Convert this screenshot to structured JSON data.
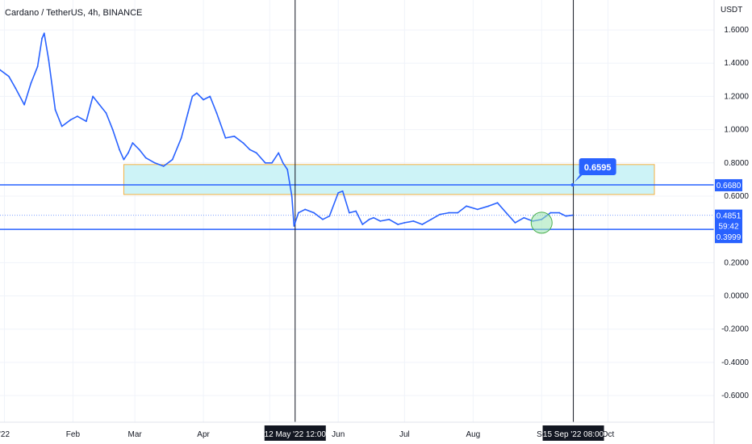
{
  "header": {
    "symbol_line": "Cardano / TetherUS, 4h, BINANCE"
  },
  "chart_data": {
    "type": "line",
    "currency": "USDT",
    "y_ticks": [
      "1.6000",
      "1.4000",
      "1.2000",
      "1.0000",
      "0.8000",
      "0.6000",
      "0.2000",
      "0.0000",
      "-0.2000",
      "-0.4000",
      "-0.6000"
    ],
    "y_tick_values": [
      1.6,
      1.4,
      1.2,
      1.0,
      0.8,
      0.6,
      0.2,
      0.0,
      -0.2,
      -0.4,
      -0.6
    ],
    "ylim": [
      -0.76,
      1.78
    ],
    "x_ticks": [
      "'22",
      "Feb",
      "Mar",
      "Apr",
      "M",
      "Jun",
      "Jul",
      "Aug",
      "Se",
      "Oct"
    ],
    "x_tick_dates": [
      "2022-01-01",
      "2022-02-01",
      "2022-03-01",
      "2022-04-01",
      "2022-05-01",
      "2022-06-01",
      "2022-07-01",
      "2022-08-01",
      "2022-09-01",
      "2022-10-01"
    ],
    "xlim": [
      "2021-12-30",
      "2022-11-18"
    ],
    "series": [
      {
        "x": [
          "2021-12-30",
          "2022-01-03",
          "2022-01-06",
          "2022-01-10",
          "2022-01-13",
          "2022-01-16",
          "2022-01-18",
          "2022-01-19",
          "2022-01-21",
          "2022-01-24",
          "2022-01-27",
          "2022-01-31",
          "2022-02-03",
          "2022-02-07",
          "2022-02-10",
          "2022-02-13",
          "2022-02-16",
          "2022-02-19",
          "2022-02-22",
          "2022-02-24",
          "2022-02-26",
          "2022-02-28",
          "2022-03-03",
          "2022-03-06",
          "2022-03-10",
          "2022-03-14",
          "2022-03-18",
          "2022-03-22",
          "2022-03-25",
          "2022-03-27",
          "2022-03-29",
          "2022-04-01",
          "2022-04-04",
          "2022-04-07",
          "2022-04-11",
          "2022-04-15",
          "2022-04-19",
          "2022-04-22",
          "2022-04-25",
          "2022-04-29",
          "2022-05-02",
          "2022-05-05",
          "2022-05-07",
          "2022-05-09",
          "2022-05-11",
          "2022-05-12",
          "2022-05-14",
          "2022-05-17",
          "2022-05-21",
          "2022-05-25",
          "2022-05-28",
          "2022-06-01",
          "2022-06-03",
          "2022-06-06",
          "2022-06-09",
          "2022-06-12",
          "2022-06-15",
          "2022-06-17",
          "2022-06-20",
          "2022-06-24",
          "2022-06-28",
          "2022-07-01",
          "2022-07-05",
          "2022-07-09",
          "2022-07-13",
          "2022-07-17",
          "2022-07-21",
          "2022-07-25",
          "2022-07-29",
          "2022-08-03",
          "2022-08-08",
          "2022-08-12",
          "2022-08-16",
          "2022-08-20",
          "2022-08-24",
          "2022-08-28",
          "2022-09-01",
          "2022-09-05",
          "2022-09-09",
          "2022-09-12",
          "2022-09-15"
        ],
        "y": [
          1.36,
          1.32,
          1.25,
          1.15,
          1.28,
          1.38,
          1.55,
          1.58,
          1.42,
          1.12,
          1.02,
          1.06,
          1.08,
          1.05,
          1.2,
          1.15,
          1.1,
          1.0,
          0.88,
          0.82,
          0.86,
          0.92,
          0.88,
          0.83,
          0.8,
          0.78,
          0.82,
          0.95,
          1.1,
          1.2,
          1.22,
          1.18,
          1.2,
          1.1,
          0.95,
          0.96,
          0.92,
          0.88,
          0.86,
          0.8,
          0.8,
          0.86,
          0.8,
          0.76,
          0.6,
          0.42,
          0.5,
          0.52,
          0.5,
          0.46,
          0.48,
          0.62,
          0.63,
          0.5,
          0.51,
          0.43,
          0.46,
          0.47,
          0.45,
          0.46,
          0.43,
          0.44,
          0.45,
          0.43,
          0.46,
          0.49,
          0.5,
          0.5,
          0.54,
          0.52,
          0.54,
          0.56,
          0.5,
          0.44,
          0.47,
          0.45,
          0.46,
          0.5,
          0.5,
          0.48,
          0.4851
        ]
      }
    ],
    "zone": {
      "x_start": "2022-02-24",
      "x_end": "2022-10-22",
      "y_low": 0.61,
      "y_high": 0.79
    },
    "horizontal_lines": [
      0.668,
      0.3999
    ],
    "dotted_price_line": 0.4851,
    "vertical_lines": [
      "2022-05-12T12:00",
      "2022-09-15T08:00"
    ],
    "callout": {
      "label": "0.6595",
      "date": "2022-09-15",
      "value": 0.668
    },
    "circle_marker": {
      "date": "2022-09-01",
      "value": 0.44
    },
    "price_labels": {
      "level_high": "0.6680",
      "current_price": "0.4851",
      "countdown": "59:42",
      "level_low": "0.3999"
    },
    "date_labels": [
      "12 May '22   12:00",
      "15 Sep '22   08:00"
    ],
    "colors": {
      "line": "#2962ff",
      "zone_fill": "#cdf3f7",
      "zone_border": "#f5b041",
      "label_bg": "#2962ff",
      "date_label_bg": "#131722",
      "circle_fill": "#9be3b0"
    }
  }
}
